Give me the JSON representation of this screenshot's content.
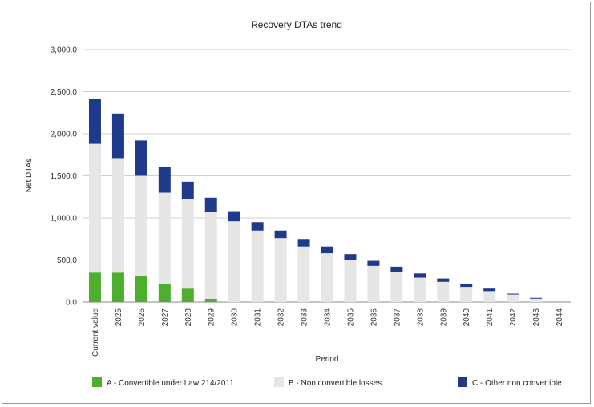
{
  "chart_data": {
    "type": "bar",
    "stacked": true,
    "title": "Recovery DTAs trend",
    "xlabel": "Period",
    "ylabel": "Net DTAs",
    "ylim": [
      0,
      3000
    ],
    "yticks": [
      "0.0",
      "500.0",
      "1,000.0",
      "1,500.0",
      "2,000.0",
      "2,500.0",
      "3,000.0"
    ],
    "ytick_values": [
      0,
      500,
      1000,
      1500,
      2000,
      2500,
      3000
    ],
    "grid": true,
    "legend_position": "bottom",
    "categories": [
      "Current value",
      "2025",
      "2026",
      "2027",
      "2028",
      "2029",
      "2030",
      "2031",
      "2032",
      "2033",
      "2034",
      "2035",
      "2036",
      "2037",
      "2038",
      "2039",
      "2040",
      "2041",
      "2042",
      "2043",
      "2044"
    ],
    "series": [
      {
        "name": "A - Convertible under Law 214/2011",
        "color": "#4caf2e",
        "values": [
          350,
          350,
          310,
          220,
          160,
          40,
          0,
          0,
          0,
          0,
          0,
          0,
          0,
          0,
          0,
          0,
          0,
          0,
          0,
          0,
          0
        ]
      },
      {
        "name": "B - Non convertible losses",
        "color": "#e6e6e6",
        "values": [
          1530,
          1360,
          1190,
          1080,
          1060,
          1030,
          960,
          850,
          760,
          660,
          580,
          500,
          430,
          360,
          290,
          240,
          180,
          130,
          90,
          40,
          0
        ]
      },
      {
        "name": "C - Other non convertible",
        "color": "#1f3a8a",
        "values": [
          530,
          530,
          420,
          300,
          210,
          170,
          120,
          100,
          90,
          90,
          80,
          70,
          60,
          60,
          50,
          40,
          30,
          30,
          10,
          10,
          0
        ]
      }
    ]
  }
}
